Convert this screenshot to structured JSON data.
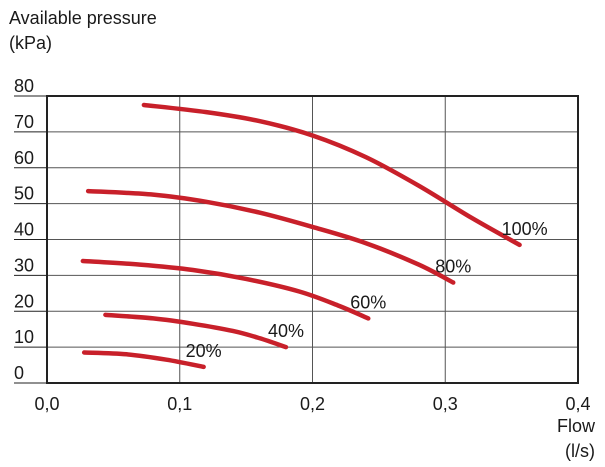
{
  "chart_data": {
    "type": "line",
    "ylabel_line1": "Available pressure",
    "ylabel_line2": "(kPa)",
    "xlabel_line1": "Flow",
    "xlabel_line2": "(l/s)",
    "xlim": [
      0,
      0.4
    ],
    "ylim": [
      0,
      80
    ],
    "x_ticks": [
      {
        "value": 0,
        "label": "0,0"
      },
      {
        "value": 0.1,
        "label": "0,1"
      },
      {
        "value": 0.2,
        "label": "0,2"
      },
      {
        "value": 0.3,
        "label": "0,3"
      },
      {
        "value": 0.4,
        "label": "0,4"
      }
    ],
    "y_ticks": [
      {
        "value": 0,
        "label": "0"
      },
      {
        "value": 10,
        "label": "10"
      },
      {
        "value": 20,
        "label": "20"
      },
      {
        "value": 30,
        "label": "30"
      },
      {
        "value": 40,
        "label": "40"
      },
      {
        "value": 50,
        "label": "50"
      },
      {
        "value": 60,
        "label": "60"
      },
      {
        "value": 70,
        "label": "70"
      },
      {
        "value": 80,
        "label": "80"
      }
    ],
    "grid": true,
    "line_color": "#c8202a",
    "series": [
      {
        "name": "100%",
        "points": [
          [
            0.073,
            77.5
          ],
          [
            0.12,
            75.5
          ],
          [
            0.16,
            73
          ],
          [
            0.2,
            69
          ],
          [
            0.24,
            63
          ],
          [
            0.28,
            55
          ],
          [
            0.32,
            46
          ],
          [
            0.356,
            38.5
          ]
        ]
      },
      {
        "name": "80%",
        "points": [
          [
            0.031,
            53.5
          ],
          [
            0.08,
            52.5
          ],
          [
            0.12,
            50.5
          ],
          [
            0.16,
            47.5
          ],
          [
            0.2,
            43.5
          ],
          [
            0.24,
            39
          ],
          [
            0.28,
            33
          ],
          [
            0.306,
            28
          ]
        ]
      },
      {
        "name": "60%",
        "points": [
          [
            0.027,
            34
          ],
          [
            0.07,
            33
          ],
          [
            0.11,
            31.5
          ],
          [
            0.15,
            29
          ],
          [
            0.19,
            25.5
          ],
          [
            0.22,
            21.5
          ],
          [
            0.242,
            18
          ]
        ]
      },
      {
        "name": "40%",
        "points": [
          [
            0.044,
            19
          ],
          [
            0.08,
            18
          ],
          [
            0.11,
            16.5
          ],
          [
            0.14,
            14.5
          ],
          [
            0.16,
            12.5
          ],
          [
            0.18,
            10
          ]
        ]
      },
      {
        "name": "20%",
        "points": [
          [
            0.028,
            8.5
          ],
          [
            0.06,
            8
          ],
          [
            0.09,
            6.5
          ],
          [
            0.118,
            4.5
          ]
        ]
      }
    ]
  }
}
